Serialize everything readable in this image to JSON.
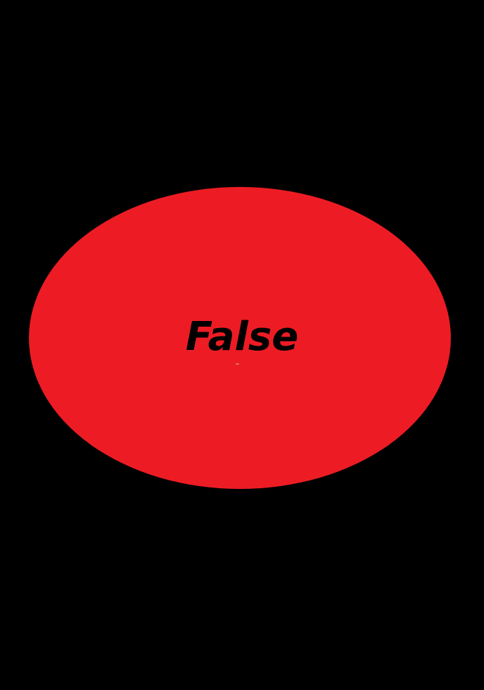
{
  "shape": {
    "type": "ellipse",
    "fill": "#ED1C24",
    "label": "False",
    "label_color": "#000000"
  },
  "background": "#000000"
}
